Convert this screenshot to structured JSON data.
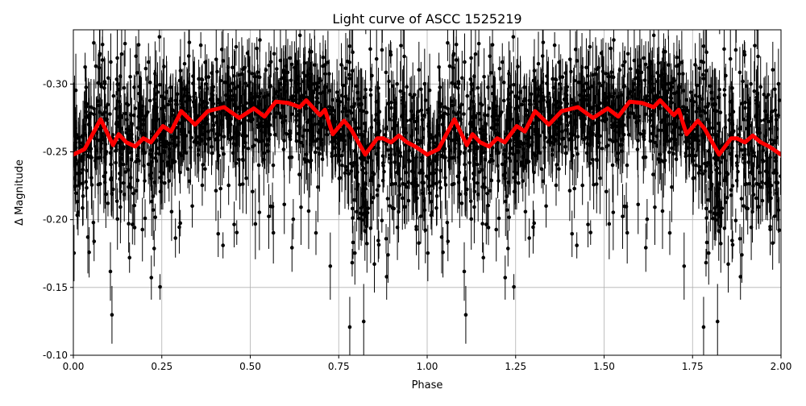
{
  "chart_data": {
    "type": "scatter",
    "title": "Light curve of ASCC 1525219",
    "xlabel": "Phase",
    "ylabel": "Δ Magnitude",
    "xlim": [
      0.0,
      2.0
    ],
    "ylim": [
      -0.34,
      -0.1
    ],
    "y_inverted": true,
    "grid": true,
    "xticks": [
      "0.00",
      "0.25",
      "0.50",
      "0.75",
      "1.00",
      "1.25",
      "1.50",
      "1.75",
      "2.00"
    ],
    "yticks": [
      "-0.30",
      "-0.25",
      "-0.20",
      "-0.15",
      "-0.10"
    ],
    "colors": {
      "points": "#000000",
      "errorbars": "#000000",
      "smoothed": "#ff0000",
      "grid": "#b0b0b0"
    },
    "series": [
      {
        "kind": "points-with-errorbars",
        "color": "#000000"
      },
      {
        "kind": "smoothed-line",
        "color": "#ff0000",
        "x": [
          0.0,
          0.032,
          0.077,
          0.112,
          0.128,
          0.15,
          0.175,
          0.198,
          0.219,
          0.253,
          0.276,
          0.305,
          0.344,
          0.38,
          0.426,
          0.469,
          0.51,
          0.54,
          0.572,
          0.608,
          0.64,
          0.658,
          0.697,
          0.711,
          0.733,
          0.765,
          0.784,
          0.825,
          0.859,
          0.875,
          0.898,
          0.92,
          0.943,
          0.966,
          1.0,
          1.032,
          1.077,
          1.112,
          1.128,
          1.15,
          1.175,
          1.198,
          1.219,
          1.253,
          1.276,
          1.305,
          1.344,
          1.38,
          1.426,
          1.469,
          1.51,
          1.54,
          1.572,
          1.608,
          1.64,
          1.658,
          1.697,
          1.711,
          1.733,
          1.765,
          1.784,
          1.825,
          1.859,
          1.875,
          1.898,
          1.92,
          1.943,
          1.966,
          2.0
        ],
        "y": [
          -0.248,
          -0.252,
          -0.274,
          -0.255,
          -0.263,
          -0.257,
          -0.254,
          -0.26,
          -0.257,
          -0.269,
          -0.265,
          -0.28,
          -0.27,
          -0.28,
          -0.283,
          -0.275,
          -0.282,
          -0.276,
          -0.287,
          -0.286,
          -0.283,
          -0.288,
          -0.277,
          -0.281,
          -0.263,
          -0.273,
          -0.267,
          -0.248,
          -0.26,
          -0.26,
          -0.257,
          -0.262,
          -0.257,
          -0.254,
          -0.248,
          -0.252,
          -0.274,
          -0.255,
          -0.263,
          -0.257,
          -0.254,
          -0.26,
          -0.257,
          -0.269,
          -0.265,
          -0.28,
          -0.27,
          -0.28,
          -0.283,
          -0.275,
          -0.282,
          -0.276,
          -0.287,
          -0.286,
          -0.283,
          -0.288,
          -0.277,
          -0.281,
          -0.263,
          -0.273,
          -0.267,
          -0.248,
          -0.26,
          -0.26,
          -0.257,
          -0.262,
          -0.257,
          -0.254,
          -0.248
        ]
      }
    ]
  }
}
